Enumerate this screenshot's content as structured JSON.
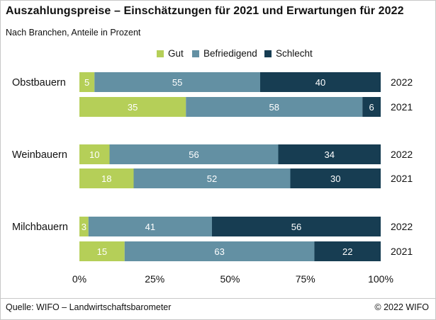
{
  "title": "Auszahlungspreise – Einschätzungen für 2021 und Erwartungen für 2022",
  "subtitle": "Nach Branchen, Anteile in Prozent",
  "source": "Quelle: WIFO – Landwirtschaftsbarometer",
  "copyright": "© 2022 WIFO",
  "colors": {
    "gut": "#b5cf58",
    "befriedigend": "#6390a3",
    "schlecht": "#173d52"
  },
  "chart_data": {
    "type": "bar",
    "orientation": "horizontal",
    "stacked": true,
    "title": "Auszahlungspreise – Einschätzungen für 2021 und Erwartungen für 2022",
    "subtitle": "Nach Branchen, Anteile in Prozent",
    "legend": [
      "Gut",
      "Befriedigend",
      "Schlecht"
    ],
    "legend_position": "top",
    "x_ticks": [
      "0%",
      "25%",
      "50%",
      "75%",
      "100%"
    ],
    "xlim": [
      0,
      100
    ],
    "grid": false,
    "groups": [
      {
        "label": "Obstbauern",
        "rows": [
          {
            "year": "2022",
            "values": [
              5,
              55,
              40
            ]
          },
          {
            "year": "2021",
            "values": [
              35,
              58,
              6
            ]
          }
        ]
      },
      {
        "label": "Weinbauern",
        "rows": [
          {
            "year": "2022",
            "values": [
              10,
              56,
              34
            ]
          },
          {
            "year": "2021",
            "values": [
              18,
              52,
              30
            ]
          }
        ]
      },
      {
        "label": "Milchbauern",
        "rows": [
          {
            "year": "2022",
            "values": [
              3,
              41,
              56
            ]
          },
          {
            "year": "2021",
            "values": [
              15,
              63,
              22
            ]
          }
        ]
      }
    ]
  }
}
